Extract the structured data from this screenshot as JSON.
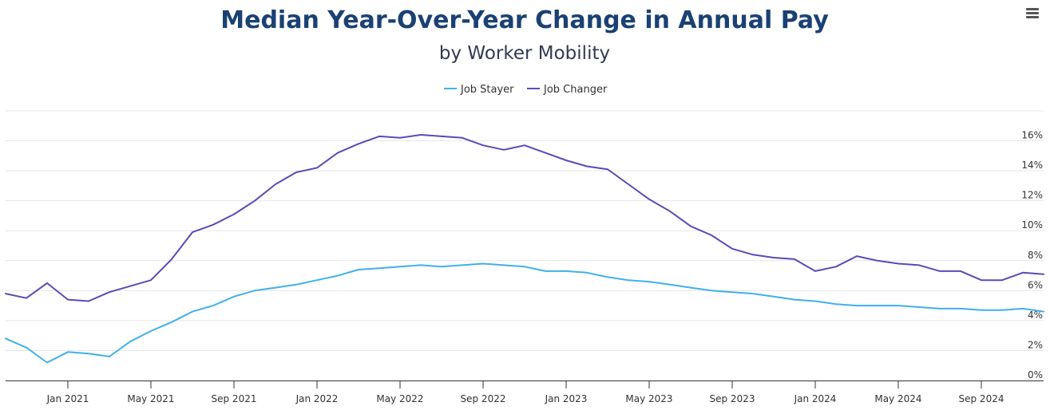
{
  "chart_data": {
    "type": "line",
    "title": "Median Year-Over-Year Change in Annual Pay",
    "subtitle": "by Worker Mobility",
    "legend_position": "top-center",
    "grid": true,
    "yaxis_position": "right",
    "ylim": [
      0,
      18
    ],
    "yticks": [
      0,
      2,
      4,
      6,
      8,
      10,
      12,
      14,
      16
    ],
    "ytick_labels": [
      "0%",
      "2%",
      "4%",
      "6%",
      "8%",
      "10%",
      "12%",
      "14%",
      "16%"
    ],
    "xlim": [
      "2020-10",
      "2024-12"
    ],
    "xticks": [
      "2021-01",
      "2021-05",
      "2021-09",
      "2022-01",
      "2022-05",
      "2022-09",
      "2023-01",
      "2023-05",
      "2023-09",
      "2024-01",
      "2024-05",
      "2024-09"
    ],
    "xtick_labels": [
      "Jan 2021",
      "May 2021",
      "Sep 2021",
      "Jan 2022",
      "May 2022",
      "Sep 2022",
      "Jan 2023",
      "May 2023",
      "Sep 2023",
      "Jan 2024",
      "May 2024",
      "Sep 2024"
    ],
    "x": [
      "2020-10",
      "2020-11",
      "2020-12",
      "2021-01",
      "2021-02",
      "2021-03",
      "2021-04",
      "2021-05",
      "2021-06",
      "2021-07",
      "2021-08",
      "2021-09",
      "2021-10",
      "2021-11",
      "2021-12",
      "2022-01",
      "2022-02",
      "2022-03",
      "2022-04",
      "2022-05",
      "2022-06",
      "2022-07",
      "2022-08",
      "2022-09",
      "2022-10",
      "2022-11",
      "2022-12",
      "2023-01",
      "2023-02",
      "2023-03",
      "2023-04",
      "2023-05",
      "2023-06",
      "2023-07",
      "2023-08",
      "2023-09",
      "2023-10",
      "2023-11",
      "2023-12",
      "2024-01",
      "2024-02",
      "2024-03",
      "2024-04",
      "2024-05",
      "2024-06",
      "2024-07",
      "2024-08",
      "2024-09",
      "2024-10",
      "2024-11",
      "2024-12"
    ],
    "series": [
      {
        "name": "Job Stayer",
        "color": "#3fb1e9",
        "values": [
          2.8,
          2.2,
          1.2,
          1.9,
          1.8,
          1.6,
          2.6,
          3.3,
          3.9,
          4.6,
          5.0,
          5.6,
          6.0,
          6.2,
          6.4,
          6.7,
          7.0,
          7.4,
          7.5,
          7.6,
          7.7,
          7.6,
          7.7,
          7.8,
          7.7,
          7.6,
          7.3,
          7.3,
          7.2,
          6.9,
          6.7,
          6.6,
          6.4,
          6.2,
          6.0,
          5.9,
          5.8,
          5.6,
          5.4,
          5.3,
          5.1,
          5.0,
          5.0,
          5.0,
          4.9,
          4.8,
          4.8,
          4.7,
          4.7,
          4.8,
          4.6
        ]
      },
      {
        "name": "Job Changer",
        "color": "#5a4ab8",
        "values": [
          5.8,
          5.5,
          6.5,
          5.4,
          5.3,
          5.9,
          6.3,
          6.7,
          8.1,
          9.9,
          10.4,
          11.1,
          12.0,
          13.1,
          13.9,
          14.2,
          15.2,
          15.8,
          16.3,
          16.2,
          16.4,
          16.3,
          16.2,
          15.7,
          15.4,
          15.7,
          15.2,
          14.7,
          14.3,
          14.1,
          13.1,
          12.1,
          11.3,
          10.3,
          9.7,
          8.8,
          8.4,
          8.2,
          8.1,
          7.3,
          7.6,
          8.3,
          8.0,
          7.8,
          7.7,
          7.3,
          7.3,
          6.7,
          6.7,
          7.2,
          7.1
        ]
      }
    ]
  }
}
